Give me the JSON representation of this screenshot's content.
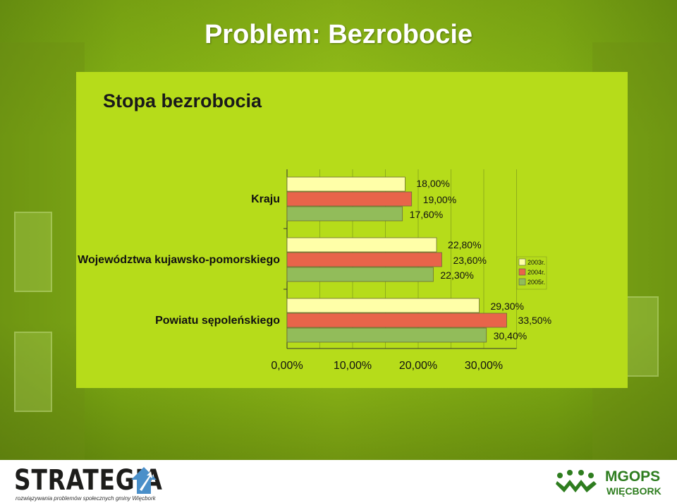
{
  "slide": {
    "title": "Problem: Bezrobocie"
  },
  "colors": {
    "panel": "#b6dc1a",
    "series_2003": "#ffffa8",
    "series_2004": "#e8644a",
    "series_2005": "#92bc5a"
  },
  "chart_data": {
    "type": "bar",
    "orientation": "horizontal",
    "title": "Stopa bezrobocia",
    "categories": [
      "Kraju",
      "Województwa kujawsko-pomorskiego",
      "Powiatu sępoleńskiego"
    ],
    "series": [
      {
        "name": "2003r.",
        "values": [
          18.0,
          22.8,
          29.3
        ],
        "labels": [
          "18,00%",
          "22,80%",
          "29,30%"
        ]
      },
      {
        "name": "2004r.",
        "values": [
          19.0,
          23.6,
          33.5
        ],
        "labels": [
          "19,00%",
          "23,60%",
          "33,50%"
        ]
      },
      {
        "name": "2005r.",
        "values": [
          17.6,
          22.3,
          30.4
        ],
        "labels": [
          "17,60%",
          "22,30%",
          "30,40%"
        ]
      }
    ],
    "xlim": [
      0,
      35
    ],
    "xticks": [
      0,
      10,
      20,
      30
    ],
    "xtick_labels": [
      "0,00%",
      "10,00%",
      "20,00%",
      "30,00%"
    ],
    "grid": true,
    "legend_position": "right"
  },
  "footer": {
    "left_logo": {
      "name": "STRATEGIA",
      "tagline": "rozwiązywania problemów społecznych gminy Więcbork",
      "icon": "arrow-up-house-icon"
    },
    "right_logo": {
      "name": "MGOPS",
      "subtitle": "WIĘCBORK",
      "icon": "people-circle-icon"
    }
  }
}
